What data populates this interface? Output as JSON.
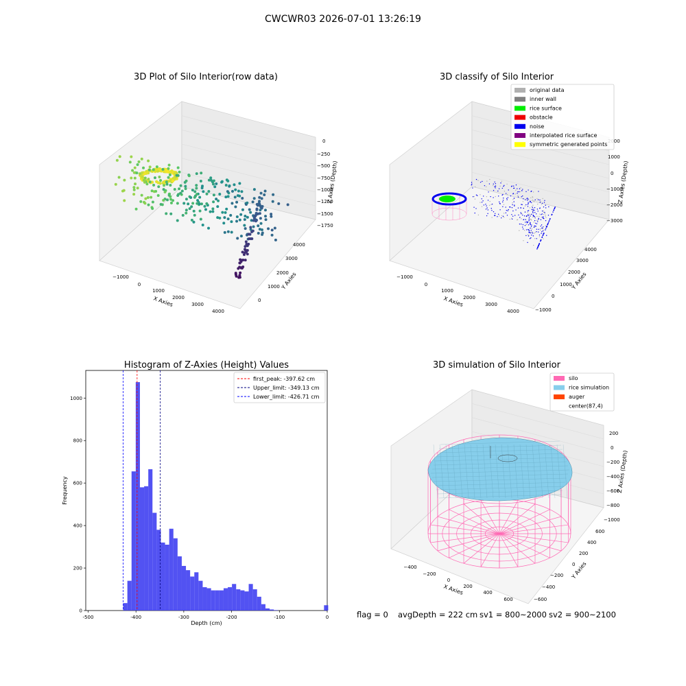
{
  "suptitle": "CWCWR03 2026-07-01 13:26:19",
  "panels": {
    "raw": {
      "title": "3D Plot of Silo Interior(row data)",
      "xlabel": "X Axies",
      "ylabel": "Y Axies",
      "zlabel": "Z Axies (Depth)",
      "x_ticks": [
        "−1000",
        "0",
        "1000",
        "2000",
        "3000",
        "4000"
      ],
      "y_ticks": [
        "0",
        "1000",
        "2000",
        "3000",
        "4000"
      ],
      "z_ticks": [
        "0",
        "−250",
        "−500",
        "−750",
        "−1000",
        "−1250",
        "−1500",
        "−1750"
      ]
    },
    "classify": {
      "title": "3D classify of Silo Interior",
      "xlabel": "X Axies",
      "ylabel": "Y Axies",
      "zlabel": "Z Axies (Depth)",
      "x_ticks": [
        "−1000",
        "0",
        "1000",
        "2000",
        "3000",
        "4000"
      ],
      "y_ticks": [
        "−1000",
        "0",
        "1000",
        "2000",
        "3000",
        "4000"
      ],
      "z_ticks": [
        "2000",
        "1000",
        "0",
        "−1000",
        "−2000",
        "−3000"
      ],
      "legend": [
        {
          "label": "original data",
          "color": "#b0b0b0"
        },
        {
          "label": "inner wall",
          "color": "#808080"
        },
        {
          "label": "rice surface",
          "color": "#00ee00"
        },
        {
          "label": "obstacle",
          "color": "#ee0000"
        },
        {
          "label": "noise",
          "color": "#0000ee"
        },
        {
          "label": "interpolated rice surface",
          "color": "#800080"
        },
        {
          "label": "symmetric generated points",
          "color": "#ffff00"
        }
      ]
    },
    "histogram": {
      "title": "Histogram of Z-Axies (Height) Values",
      "xlabel": "Depth (cm)",
      "ylabel": "Frequency",
      "lines": [
        {
          "label": "first_peak: -397.62 cm",
          "value": -397.62,
          "color": "#ff0000"
        },
        {
          "label": "Upper_limit: -349.13 cm",
          "value": -349.13,
          "color": "#000080"
        },
        {
          "label": "Lower_limit: -426.71 cm",
          "value": -426.71,
          "color": "#0000ff"
        }
      ]
    },
    "simulation": {
      "title": "3D simulation of Silo Interior",
      "xlabel": "X Axies",
      "ylabel": "Y Axies",
      "zlabel": "Z Axies (Depth)",
      "x_ticks": [
        "−400",
        "−200",
        "0",
        "200",
        "400",
        "600"
      ],
      "y_ticks": [
        "−600",
        "−400",
        "−200",
        "0",
        "200",
        "400",
        "600"
      ],
      "z_ticks": [
        "200",
        "0",
        "−200",
        "−400",
        "−600",
        "−800",
        "−1000"
      ],
      "legend": [
        {
          "label": "silo",
          "color": "#ff69b4"
        },
        {
          "label": "rice simulation",
          "color": "#87ceeb"
        },
        {
          "label": "auger",
          "color": "#ff4500"
        },
        {
          "label": "center(87,4)",
          "color": ""
        }
      ]
    }
  },
  "status": {
    "flag": "flag = 0",
    "avg_depth": "avgDepth = 222 cm",
    "sv1": "sv1 = 800~2000",
    "sv2": "sv2 = 900~2100"
  },
  "chart_data": [
    {
      "type": "histogram",
      "title": "Histogram of Z-Axies (Height) Values",
      "xlabel": "Depth (cm)",
      "ylabel": "Frequency",
      "xlim": [
        -505,
        0
      ],
      "ylim": [
        0,
        1130
      ],
      "x_ticks": [
        -500,
        -400,
        -300,
        -200,
        -100,
        0
      ],
      "y_ticks": [
        0,
        200,
        400,
        600,
        800,
        1000
      ],
      "bin_width": 8.75,
      "bin_starts": [
        -426.71,
        -417.96,
        -409.21,
        -400.46,
        -391.71,
        -382.96,
        -374.21,
        -365.46,
        -356.71,
        -347.96,
        -339.21,
        -330.46,
        -321.71,
        -312.96,
        -304.21,
        -295.46,
        -286.71,
        -277.96,
        -269.21,
        -260.46,
        -251.71,
        -242.96,
        -234.21,
        -225.46,
        -216.71,
        -207.96,
        -199.21,
        -190.46,
        -181.71,
        -172.96,
        -164.21,
        -155.46,
        -146.71,
        -137.96,
        -129.21,
        -120.46,
        -111.71,
        -102.96,
        -94.21,
        -85.46,
        -76.71,
        -67.96,
        -59.21,
        -50.46,
        -41.71,
        -32.96,
        -24.21,
        -15.46,
        -6.71
      ],
      "values": [
        35,
        140,
        655,
        1075,
        580,
        585,
        665,
        460,
        380,
        320,
        310,
        385,
        340,
        255,
        210,
        190,
        160,
        180,
        140,
        110,
        105,
        95,
        95,
        95,
        105,
        110,
        125,
        100,
        95,
        90,
        125,
        100,
        65,
        30,
        10,
        5,
        2,
        0,
        0,
        0,
        0,
        0,
        0,
        0,
        0,
        0,
        0,
        0,
        25
      ],
      "series": [
        {
          "name": "first_peak: -397.62 cm",
          "value": -397.62
        },
        {
          "name": "Upper_limit: -349.13 cm",
          "value": -349.13
        },
        {
          "name": "Lower_limit: -426.71 cm",
          "value": -426.71
        }
      ]
    },
    {
      "type": "scatter",
      "title": "3D Plot of Silo Interior(row data)",
      "xlabel": "X Axies",
      "ylabel": "Y Axies",
      "zlabel": "Z Axies (Depth)",
      "xlim": [
        -1500,
        4500
      ],
      "ylim": [
        -500,
        4500
      ],
      "zlim": [
        -2000,
        100
      ]
    },
    {
      "type": "scatter",
      "title": "3D classify of Silo Interior",
      "xlabel": "X Axies",
      "ylabel": "Y Axies",
      "zlabel": "Z Axies (Depth)",
      "series": [
        {
          "name": "original data"
        },
        {
          "name": "inner wall"
        },
        {
          "name": "rice surface"
        },
        {
          "name": "obstacle"
        },
        {
          "name": "noise"
        },
        {
          "name": "interpolated rice surface"
        },
        {
          "name": "symmetric generated points"
        }
      ]
    },
    {
      "type": "surface",
      "title": "3D simulation of Silo Interior",
      "xlabel": "X Axies",
      "ylabel": "Y Axies",
      "zlabel": "Z Axies (Depth)",
      "series": [
        {
          "name": "silo"
        },
        {
          "name": "rice simulation"
        },
        {
          "name": "auger"
        },
        {
          "name": "center(87,4)"
        }
      ]
    }
  ]
}
